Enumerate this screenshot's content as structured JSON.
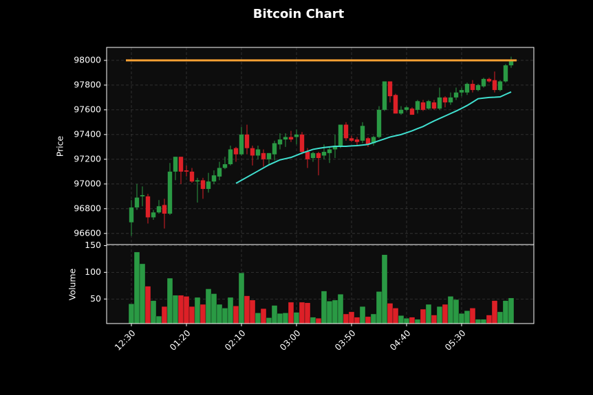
{
  "chart_data": {
    "type": "candlestick",
    "title": "Bitcoin Chart",
    "x": [
      "12:30",
      "12:35",
      "12:40",
      "12:45",
      "12:50",
      "12:55",
      "01:00",
      "01:05",
      "01:10",
      "01:15",
      "01:20",
      "01:25",
      "01:30",
      "01:35",
      "01:40",
      "01:45",
      "01:50",
      "01:55",
      "02:00",
      "02:05",
      "02:10",
      "02:15",
      "02:20",
      "02:25",
      "02:30",
      "02:35",
      "02:40",
      "02:45",
      "02:50",
      "02:55",
      "03:00",
      "03:05",
      "03:10",
      "03:15",
      "03:20",
      "03:25",
      "03:30",
      "03:35",
      "03:40",
      "03:45",
      "03:50",
      "03:55",
      "04:00",
      "04:05",
      "04:10",
      "04:15",
      "04:20",
      "04:25",
      "04:30",
      "04:35",
      "04:40",
      "04:45",
      "04:50",
      "04:55",
      "05:00",
      "05:05",
      "05:10",
      "05:15",
      "05:20",
      "05:25",
      "05:30",
      "05:35",
      "05:40",
      "05:45",
      "05:50",
      "05:55",
      "06:00",
      "06:05",
      "06:10",
      "06:15"
    ],
    "xticks": [
      "12:30",
      "01:20",
      "02:10",
      "03:00",
      "03:50",
      "04:40",
      "05:30"
    ],
    "open": [
      96690,
      96810,
      96900,
      96900,
      96730,
      96770,
      96830,
      96760,
      97100,
      97220,
      97110,
      97100,
      97020,
      97030,
      96960,
      97020,
      97060,
      97130,
      97160,
      97290,
      97240,
      97400,
      97290,
      97230,
      97250,
      97200,
      97240,
      97320,
      97360,
      97380,
      97380,
      97400,
      97260,
      97210,
      97250,
      97230,
      97250,
      97280,
      97310,
      97480,
      97370,
      97360,
      97350,
      97370,
      97330,
      97380,
      97600,
      97830,
      97720,
      97570,
      97600,
      97610,
      97600,
      97660,
      97610,
      97660,
      97610,
      97700,
      97660,
      97700,
      97740,
      97740,
      97810,
      97760,
      97790,
      97850,
      97840,
      97760,
      97830,
      97960
    ],
    "high": [
      96870,
      97000,
      96980,
      96920,
      96790,
      96870,
      96880,
      97170,
      97220,
      97220,
      97150,
      97130,
      97050,
      97050,
      97090,
      97110,
      97180,
      97220,
      97310,
      97300,
      97460,
      97480,
      97310,
      97310,
      97280,
      97250,
      97350,
      97410,
      97410,
      97430,
      97440,
      97420,
      97290,
      97260,
      97260,
      97320,
      97300,
      97400,
      97480,
      97500,
      97390,
      97380,
      97500,
      97380,
      97390,
      97630,
      97830,
      97830,
      97730,
      97630,
      97630,
      97620,
      97680,
      97680,
      97680,
      97680,
      97780,
      97710,
      97740,
      97780,
      97780,
      97820,
      97840,
      97810,
      97860,
      97860,
      97910,
      97840,
      97970,
      98030
    ],
    "low": [
      96580,
      96790,
      96820,
      96680,
      96710,
      96760,
      96640,
      96750,
      97030,
      97000,
      97060,
      97010,
      96850,
      96880,
      96930,
      97000,
      97030,
      97120,
      97150,
      97180,
      97230,
      97240,
      97150,
      97200,
      97140,
      97160,
      97190,
      97280,
      97300,
      97340,
      97320,
      97240,
      97130,
      97180,
      97070,
      97200,
      97170,
      97210,
      97290,
      97350,
      97340,
      97310,
      97330,
      97300,
      97310,
      97370,
      97590,
      97660,
      97570,
      97560,
      97590,
      97560,
      97570,
      97590,
      97600,
      97600,
      97600,
      97620,
      97640,
      97680,
      97710,
      97720,
      97740,
      97750,
      97780,
      97820,
      97740,
      97750,
      97820,
      97940
    ],
    "close": [
      96810,
      96890,
      96910,
      96730,
      96770,
      96820,
      96760,
      97100,
      97220,
      97100,
      97100,
      97020,
      97030,
      96960,
      97020,
      97070,
      97130,
      97160,
      97280,
      97240,
      97400,
      97290,
      97230,
      97280,
      97200,
      97250,
      97330,
      97360,
      97380,
      97360,
      97400,
      97260,
      97200,
      97250,
      97210,
      97260,
      97280,
      97310,
      97480,
      97370,
      97350,
      97340,
      97470,
      97320,
      97380,
      97600,
      97830,
      97710,
      97570,
      97600,
      97620,
      97560,
      97670,
      97600,
      97670,
      97610,
      97700,
      97660,
      97700,
      97740,
      97760,
      97810,
      97760,
      97800,
      97850,
      97830,
      97760,
      97830,
      97960,
      98000
    ],
    "up_color": "#2a9a44",
    "down_color": "#dd2027",
    "ylabel": "Price",
    "ylim": [
      96510,
      98105
    ],
    "yticks": [
      96600,
      96800,
      97000,
      97200,
      97400,
      97600,
      97800,
      98000
    ],
    "grid": true,
    "moving_average": {
      "color": "#40e0d0",
      "values": [
        null,
        null,
        null,
        null,
        null,
        null,
        null,
        null,
        null,
        null,
        null,
        null,
        null,
        null,
        null,
        null,
        null,
        null,
        null,
        97005,
        97030,
        97055,
        97080,
        97105,
        97130,
        97155,
        97175,
        97195,
        97205,
        97215,
        97232,
        97250,
        97265,
        97280,
        97288,
        97295,
        97300,
        97305,
        97305,
        97305,
        97308,
        97310,
        97315,
        97320,
        97335,
        97350,
        97365,
        97380,
        97390,
        97400,
        97415,
        97430,
        97448,
        97465,
        97488,
        97510,
        97530,
        97550,
        97570,
        97590,
        97612,
        97635,
        97662,
        97690,
        97695,
        97700,
        97702,
        97705,
        97725,
        97745
      ]
    },
    "hline": {
      "value": 98000,
      "color": "#f5a033"
    },
    "volume": {
      "ylabel": "Volume",
      "ylim": [
        4,
        152
      ],
      "yticks": [
        50,
        100,
        150
      ],
      "values": [
        41,
        138,
        116,
        74,
        47,
        18,
        36,
        89,
        57,
        57,
        55,
        36,
        53,
        40,
        69,
        60,
        40,
        33,
        53,
        37,
        99,
        56,
        48,
        24,
        32,
        15,
        38,
        23,
        24,
        44,
        25,
        44,
        43,
        16,
        14,
        65,
        46,
        48,
        59,
        22,
        26,
        16,
        36,
        17,
        22,
        64,
        133,
        42,
        33,
        19,
        14,
        16,
        12,
        31,
        40,
        20,
        36,
        40,
        55,
        49,
        23,
        28,
        33,
        12,
        12,
        20,
        47,
        26,
        47,
        52
      ]
    }
  }
}
